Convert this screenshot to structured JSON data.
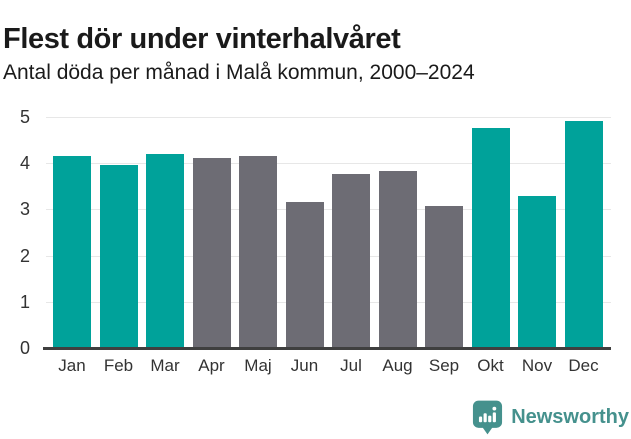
{
  "header": {
    "title": "Flest dör under vinterhalvåret",
    "subtitle": "Antal döda per månad i Malå kommun, 2000–2024"
  },
  "chart_data": {
    "type": "bar",
    "title": "Flest dör under vinterhalvåret",
    "subtitle": "Antal döda per månad i Malå kommun, 2000–2024",
    "categories": [
      "Jan",
      "Feb",
      "Mar",
      "Apr",
      "Maj",
      "Jun",
      "Jul",
      "Aug",
      "Sep",
      "Okt",
      "Nov",
      "Dec"
    ],
    "values": [
      4.16,
      3.96,
      4.2,
      4.12,
      4.16,
      3.16,
      3.76,
      3.84,
      3.08,
      4.76,
      3.28,
      4.92
    ],
    "highlight": [
      true,
      true,
      true,
      false,
      false,
      false,
      false,
      false,
      false,
      true,
      true,
      true
    ],
    "xlabel": "",
    "ylabel": "",
    "ylim": [
      0,
      5
    ],
    "yticks": [
      0,
      1,
      2,
      3,
      4,
      5
    ],
    "grid": true,
    "legend": false,
    "colors": {
      "highlight_bar": "#00A29A",
      "other_bar": "#6D6C74",
      "gridline": "#E7E7E7",
      "axis_line": "#3F3F3F",
      "axis_text": "#333333"
    }
  },
  "footer": {
    "brand": "Newsworthy",
    "logo_icon": "newsworthy-pin-barchart-icon",
    "brand_color": "#45918D"
  }
}
